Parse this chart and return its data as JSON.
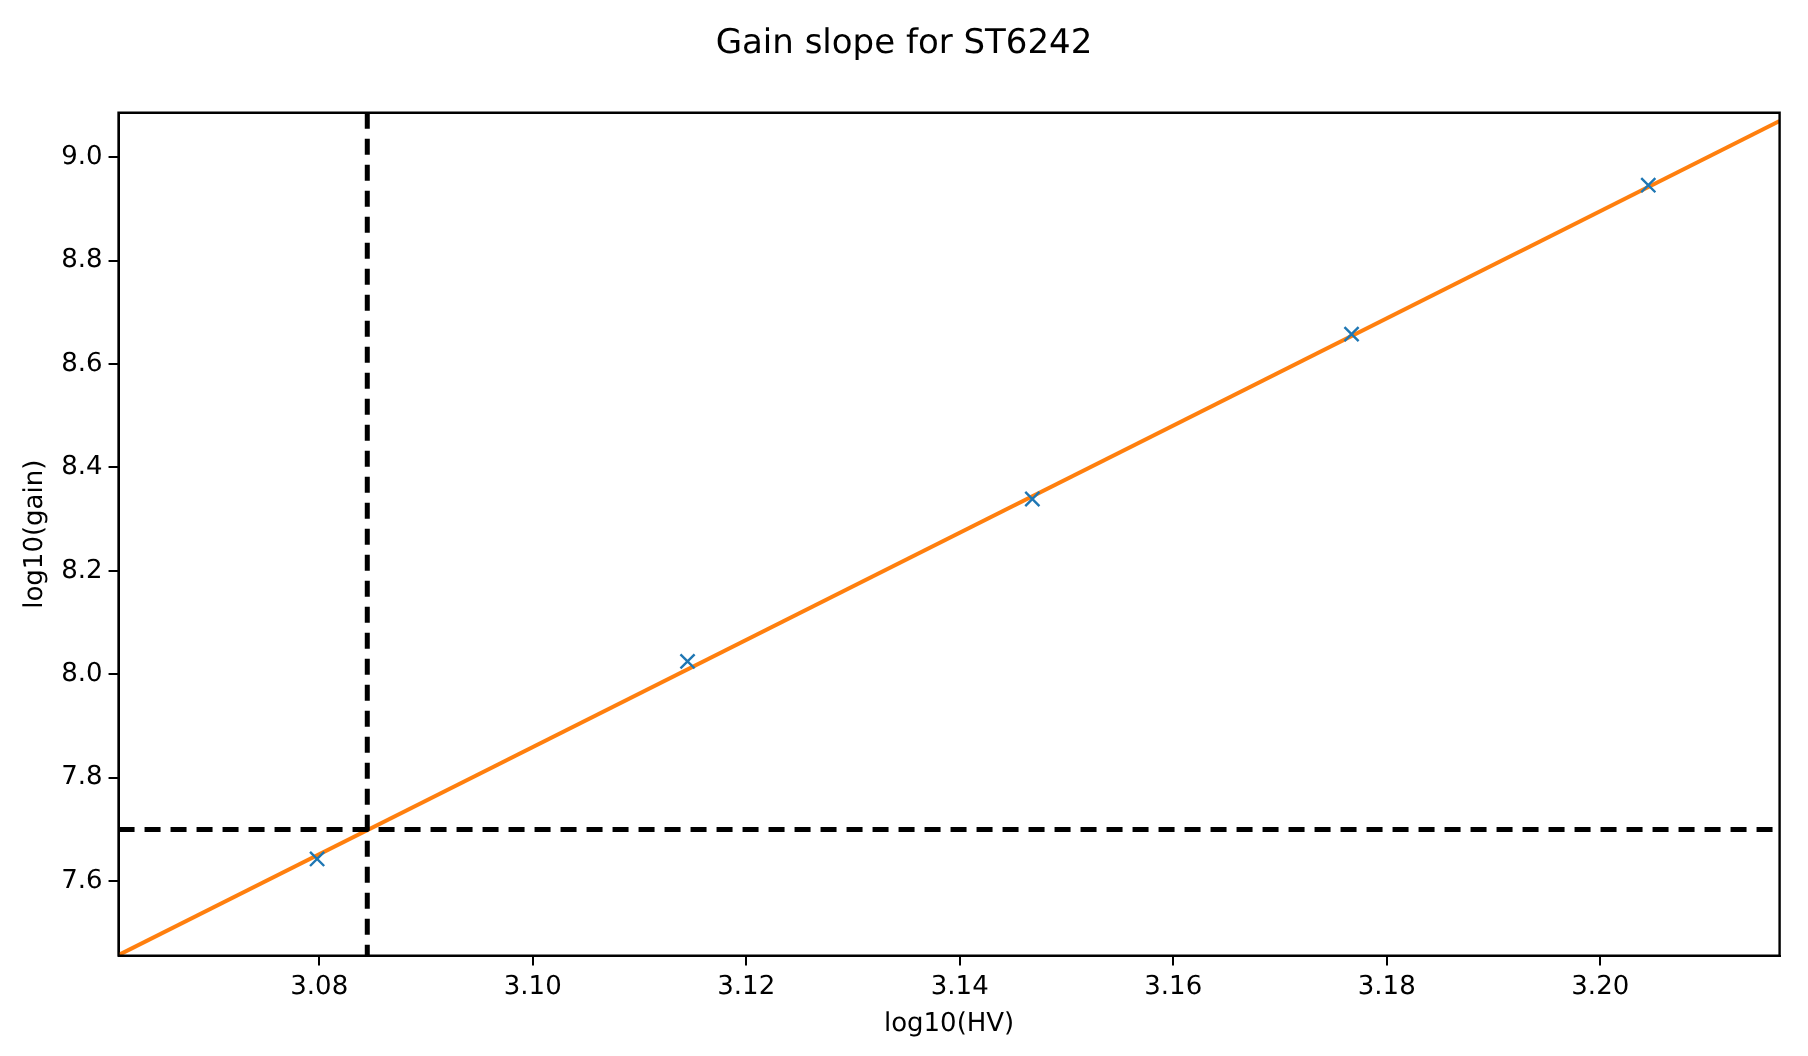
{
  "chart_data": {
    "type": "scatter",
    "title": "Gain slope for ST6242",
    "xlabel": "log10(HV)",
    "ylabel": "log10(gain)",
    "xlim": [
      3.0612,
      3.2168
    ],
    "xticks": [
      3.08,
      {
        "value": 3.1,
        "label": "3.10"
      },
      3.12,
      3.14,
      3.16,
      3.18,
      {
        "value": 3.2,
        "label": "3.20"
      }
    ],
    "ylim": [
      7.456,
      9.086
    ],
    "yticks": [
      7.6,
      7.8,
      {
        "value": 8,
        "label": "8.0"
      },
      8.2,
      8.4,
      8.6,
      8.8,
      {
        "value": 9,
        "label": "9.0"
      }
    ],
    "grid": false,
    "legend": false,
    "marker": "cross",
    "series": [
      {
        "type": "scatter",
        "color": "#1f77b4",
        "x": [
          3.0798,
          3.1145,
          3.1468,
          3.1767,
          3.2045
        ],
        "values": [
          7.643,
          8.025,
          8.339,
          8.658,
          8.946
        ]
      },
      {
        "type": "line",
        "color": "#ff7f0e",
        "marker": "none",
        "x": [
          3.0612,
          3.2168
        ],
        "values": [
          7.457,
          9.07
        ]
      }
    ],
    "ref_lines": [
      {
        "axis": "x",
        "value": 3.0845,
        "color": "#000000",
        "line_style": "dashed"
      },
      {
        "axis": "y",
        "value": 7.7,
        "color": "#000000",
        "line_style": "dashed"
      }
    ]
  }
}
